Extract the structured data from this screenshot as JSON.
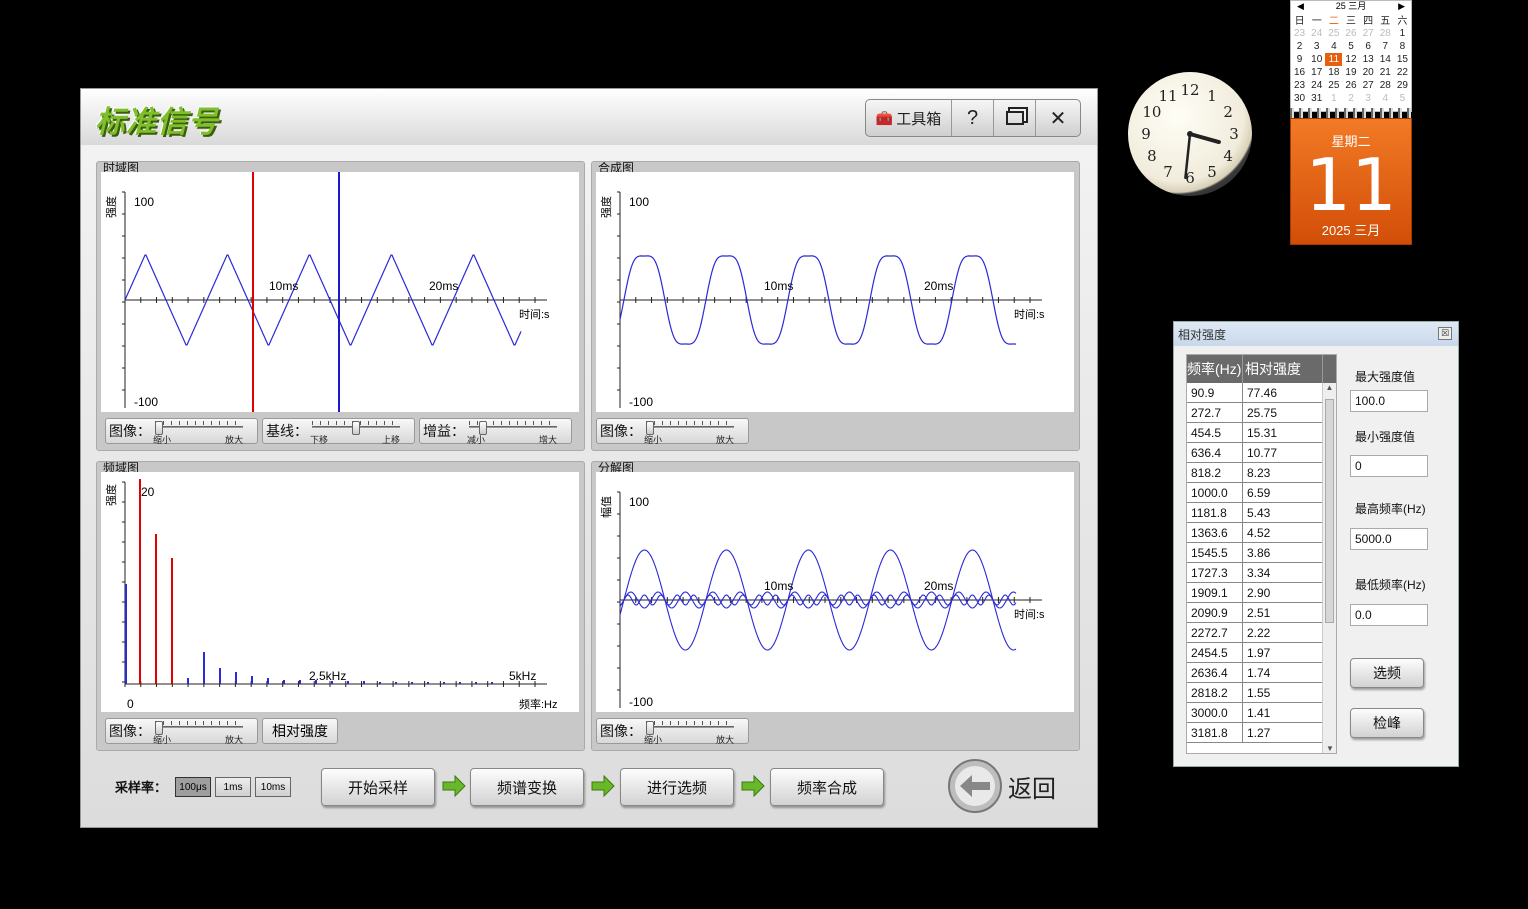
{
  "app": {
    "title": "标准信号",
    "toolbox_label": "工具箱",
    "help_label": "?",
    "close_label": "✕"
  },
  "panels": {
    "time": {
      "label": "时域图",
      "ylabel": "强度",
      "ymax": "100",
      "ymin": "-100",
      "xt1": "10ms",
      "xt2": "20ms",
      "xunit": "时间:s",
      "image_label": "图像：",
      "baseline_label": "基线：",
      "gain_label": "增益："
    },
    "synth": {
      "label": "合成图",
      "ylabel": "强度",
      "ymax": "100",
      "ymin": "-100",
      "xt1": "10ms",
      "xt2": "20ms",
      "xunit": "时间:s",
      "image_label": "图像："
    },
    "freq": {
      "label": "频域图",
      "ylabel": "强度",
      "ymax": "20",
      "x0": "0",
      "xt1": "2.5kHz",
      "xt2": "5kHz",
      "xunit": "频率:Hz",
      "image_label": "图像：",
      "rel_button": "相对强度"
    },
    "decomp": {
      "label": "分解图",
      "ylabel": "幅值",
      "ymax": "100",
      "ymin": "-100",
      "xt1": "10ms",
      "xt2": "20ms",
      "xunit": "时间:s",
      "image_label": "图像："
    }
  },
  "slider_text": {
    "zoom_lo": "缩小",
    "zoom_hi": "放大",
    "base_lo": "下移",
    "base_hi": "上移",
    "gain_lo": "减小",
    "gain_hi": "增大"
  },
  "bottom": {
    "rate_label": "采样率：",
    "rates": [
      "100μs",
      "1ms",
      "10ms"
    ],
    "selected_rate": "100μs",
    "steps": [
      "开始采样",
      "频谱变换",
      "进行选频",
      "频率合成"
    ],
    "back_label": "返回"
  },
  "clock": {
    "hour": 3,
    "minute": 31
  },
  "calendar": {
    "header": "25 三月",
    "weekdays": [
      "日",
      "一",
      "二",
      "三",
      "四",
      "五",
      "六"
    ],
    "rows": [
      [
        "23",
        "24",
        "25",
        "26",
        "27",
        "28",
        "1"
      ],
      [
        "2",
        "3",
        "4",
        "5",
        "6",
        "7",
        "8"
      ],
      [
        "9",
        "10",
        "11",
        "12",
        "13",
        "14",
        "15"
      ],
      [
        "16",
        "17",
        "18",
        "19",
        "20",
        "21",
        "22"
      ],
      [
        "23",
        "24",
        "25",
        "26",
        "27",
        "28",
        "29"
      ],
      [
        "30",
        "31",
        "1",
        "2",
        "3",
        "4",
        "5"
      ]
    ],
    "weekday_name": "星期二",
    "day": "11",
    "month_year": "2025 三月"
  },
  "intensity": {
    "title": "相对强度",
    "close": "☒",
    "col1": "频率(Hz)",
    "col2": "相对强度",
    "rows": [
      [
        "90.9",
        "77.46"
      ],
      [
        "272.7",
        "25.75"
      ],
      [
        "454.5",
        "15.31"
      ],
      [
        "636.4",
        "10.77"
      ],
      [
        "818.2",
        "8.23"
      ],
      [
        "1000.0",
        "6.59"
      ],
      [
        "1181.8",
        "5.43"
      ],
      [
        "1363.6",
        "4.52"
      ],
      [
        "1545.5",
        "3.86"
      ],
      [
        "1727.3",
        "3.34"
      ],
      [
        "1909.1",
        "2.90"
      ],
      [
        "2090.9",
        "2.51"
      ],
      [
        "2272.7",
        "2.22"
      ],
      [
        "2454.5",
        "1.97"
      ],
      [
        "2636.4",
        "1.74"
      ],
      [
        "2818.2",
        "1.55"
      ],
      [
        "3000.0",
        "1.41"
      ],
      [
        "3181.8",
        "1.27"
      ]
    ],
    "max_label": "最大强度值",
    "max_value": "100.0",
    "min_label": "最小强度值",
    "min_value": "0",
    "maxf_label": "最高频率(Hz)",
    "maxf_value": "5000.0",
    "minf_label": "最低频率(Hz)",
    "minf_value": "0.0",
    "select_button": "选频",
    "peak_button": "检峰"
  },
  "colors": {
    "wave": "#2a2ad8",
    "red_marker": "#e00000",
    "blue_marker": "#1a1acc"
  }
}
